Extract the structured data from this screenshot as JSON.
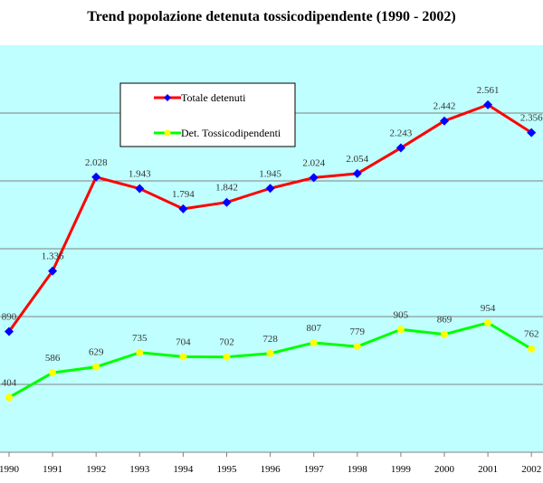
{
  "chart_data": {
    "type": "line",
    "title": "Trend popolazione detenuta tossicodipendente (1990 - 2002)",
    "categories": [
      "1990",
      "1991",
      "1992",
      "1993",
      "1994",
      "1995",
      "1996",
      "1997",
      "1998",
      "1999",
      "2000",
      "2001",
      "2002"
    ],
    "series": [
      {
        "name": "Totale detenuti",
        "values": [
          890,
          1336,
          2028,
          1943,
          1794,
          1842,
          1945,
          2024,
          2054,
          2243,
          2442,
          2561,
          2356
        ],
        "labels": [
          "890",
          "1.336",
          "2.028",
          "1.943",
          "1.794",
          "1.842",
          "1.945",
          "2.024",
          "2.054",
          "2.243",
          "2.442",
          "2.561",
          "2.356"
        ],
        "color": "#ff0000",
        "marker_color": "#0000ff"
      },
      {
        "name": "Det. Tossicodipendenti",
        "values": [
          404,
          586,
          629,
          735,
          704,
          702,
          728,
          807,
          779,
          905,
          869,
          954,
          762
        ],
        "labels": [
          "404",
          "586",
          "629",
          "735",
          "704",
          "702",
          "728",
          "807",
          "779",
          "905",
          "869",
          "954",
          "762"
        ],
        "color": "#00ff00",
        "marker_color": "#ffff00"
      }
    ],
    "ylim": [
      0,
      3000
    ],
    "gridlines": [
      500,
      1000,
      1500,
      2000,
      2500
    ],
    "grid": true,
    "legend_position": "top-left",
    "plot_background": "#bfffff",
    "xlabel": "",
    "ylabel": ""
  }
}
